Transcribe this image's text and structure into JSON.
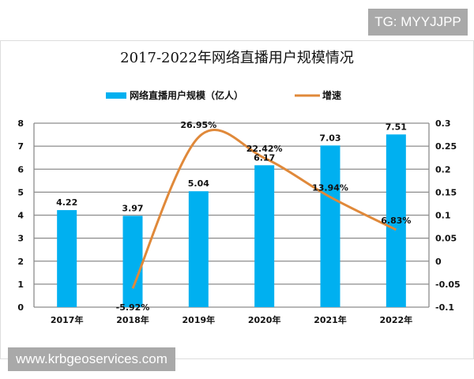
{
  "watermarks": {
    "top": "TG: MYYJJPP",
    "bottom": "www.krbgeoservices.com"
  },
  "chart_data": {
    "type": "bar+line",
    "title": "2017-2022年网络直播用户规模情况",
    "categories": [
      "2017年",
      "2018年",
      "2019年",
      "2020年",
      "2021年",
      "2022年"
    ],
    "series": [
      {
        "name": "网络直播用户规模（亿人）",
        "type": "bar",
        "axis": "left",
        "color": "#00B0F0",
        "values": [
          4.22,
          3.97,
          5.04,
          6.17,
          7.03,
          7.51
        ],
        "labels": [
          "4.22",
          "3.97",
          "5.04",
          "6.17",
          "7.03",
          "7.51"
        ]
      },
      {
        "name": "增速",
        "type": "line",
        "axis": "right",
        "color": "#E0893A",
        "smooth": true,
        "values": [
          null,
          -0.0592,
          0.2695,
          0.2242,
          0.1394,
          0.0683
        ],
        "labels": [
          "",
          "-5.92%",
          "26.95%",
          "22.42%",
          "13.94%",
          "6.83%"
        ]
      }
    ],
    "left_axis": {
      "ylim": [
        0,
        8
      ],
      "ticks": [
        "0",
        "1",
        "2",
        "3",
        "4",
        "5",
        "6",
        "7",
        "8"
      ]
    },
    "right_axis": {
      "ylim": [
        -0.1,
        0.3
      ],
      "ticks": [
        "-0.1",
        "-0.05",
        "0",
        "0.05",
        "0.1",
        "0.15",
        "0.2",
        "0.25",
        "0.3"
      ]
    },
    "grid": true,
    "legend": "top"
  }
}
